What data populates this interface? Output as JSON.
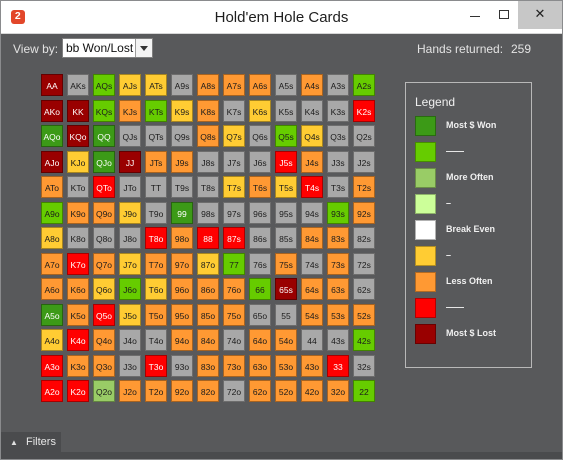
{
  "window": {
    "title": "Hold'em Hole Cards",
    "logo_text": "2",
    "minimize_icon": "minimize-icon",
    "maximize_icon": "maximize-icon",
    "close_icon": "close-icon",
    "close_glyph": "✕"
  },
  "toolbar": {
    "view_by_label": "View by:",
    "view_by_value": "bb Won/Lost",
    "hands_returned_label": "Hands returned:",
    "hands_returned_value": "259"
  },
  "colors": {
    "dg": "#3c9a17",
    "lg": "#66cc00",
    "pg": "#99cc66",
    "vp": "#ccff99",
    "wh": "#ffffff",
    "yl": "#ffcc33",
    "or": "#ff9933",
    "rd": "#ff0000",
    "dr": "#990000",
    "gy": "#a8a8a8"
  },
  "matrix": [
    [
      [
        "AA",
        "dr"
      ],
      [
        "AKs",
        "gy"
      ],
      [
        "AQs",
        "lg"
      ],
      [
        "AJs",
        "yl"
      ],
      [
        "ATs",
        "yl"
      ],
      [
        "A9s",
        "gy"
      ],
      [
        "A8s",
        "or"
      ],
      [
        "A7s",
        "or"
      ],
      [
        "A6s",
        "or"
      ],
      [
        "A5s",
        "gy"
      ],
      [
        "A4s",
        "or"
      ],
      [
        "A3s",
        "gy"
      ],
      [
        "A2s",
        "lg"
      ]
    ],
    [
      [
        "AKo",
        "dr"
      ],
      [
        "KK",
        "dr"
      ],
      [
        "KQs",
        "lg"
      ],
      [
        "KJs",
        "or"
      ],
      [
        "KTs",
        "lg"
      ],
      [
        "K9s",
        "yl"
      ],
      [
        "K8s",
        "or"
      ],
      [
        "K7s",
        "gy"
      ],
      [
        "K6s",
        "yl"
      ],
      [
        "K5s",
        "gy"
      ],
      [
        "K4s",
        "gy"
      ],
      [
        "K3s",
        "gy"
      ],
      [
        "K2s",
        "rd"
      ]
    ],
    [
      [
        "AQo",
        "dg"
      ],
      [
        "KQo",
        "dr"
      ],
      [
        "QQ",
        "dg"
      ],
      [
        "QJs",
        "gy"
      ],
      [
        "QTs",
        "gy"
      ],
      [
        "Q9s",
        "gy"
      ],
      [
        "Q8s",
        "or"
      ],
      [
        "Q7s",
        "yl"
      ],
      [
        "Q6s",
        "gy"
      ],
      [
        "Q5s",
        "lg"
      ],
      [
        "Q4s",
        "yl"
      ],
      [
        "Q3s",
        "gy"
      ],
      [
        "Q2s",
        "gy"
      ]
    ],
    [
      [
        "AJo",
        "dr"
      ],
      [
        "KJo",
        "yl"
      ],
      [
        "QJo",
        "dg"
      ],
      [
        "JJ",
        "dr"
      ],
      [
        "JTs",
        "or"
      ],
      [
        "J9s",
        "or"
      ],
      [
        "J8s",
        "gy"
      ],
      [
        "J7s",
        "gy"
      ],
      [
        "J6s",
        "gy"
      ],
      [
        "J5s",
        "rd"
      ],
      [
        "J4s",
        "or"
      ],
      [
        "J3s",
        "gy"
      ],
      [
        "J2s",
        "gy"
      ]
    ],
    [
      [
        "ATo",
        "or"
      ],
      [
        "KTo",
        "gy"
      ],
      [
        "QTo",
        "rd"
      ],
      [
        "JTo",
        "gy"
      ],
      [
        "TT",
        "gy"
      ],
      [
        "T9s",
        "gy"
      ],
      [
        "T8s",
        "gy"
      ],
      [
        "T7s",
        "yl"
      ],
      [
        "T6s",
        "or"
      ],
      [
        "T5s",
        "yl"
      ],
      [
        "T4s",
        "rd"
      ],
      [
        "T3s",
        "gy"
      ],
      [
        "T2s",
        "or"
      ]
    ],
    [
      [
        "A9o",
        "lg"
      ],
      [
        "K9o",
        "or"
      ],
      [
        "Q9o",
        "or"
      ],
      [
        "J9o",
        "yl"
      ],
      [
        "T9o",
        "gy"
      ],
      [
        "99",
        "dg"
      ],
      [
        "98s",
        "gy"
      ],
      [
        "97s",
        "gy"
      ],
      [
        "96s",
        "gy"
      ],
      [
        "95s",
        "gy"
      ],
      [
        "94s",
        "gy"
      ],
      [
        "93s",
        "lg"
      ],
      [
        "92s",
        "or"
      ]
    ],
    [
      [
        "A8o",
        "yl"
      ],
      [
        "K8o",
        "gy"
      ],
      [
        "Q8o",
        "gy"
      ],
      [
        "J8o",
        "gy"
      ],
      [
        "T8o",
        "rd"
      ],
      [
        "98o",
        "or"
      ],
      [
        "88",
        "rd"
      ],
      [
        "87s",
        "rd"
      ],
      [
        "86s",
        "gy"
      ],
      [
        "85s",
        "gy"
      ],
      [
        "84s",
        "or"
      ],
      [
        "83s",
        "or"
      ],
      [
        "82s",
        "gy"
      ]
    ],
    [
      [
        "A7o",
        "or"
      ],
      [
        "K7o",
        "rd"
      ],
      [
        "Q7o",
        "or"
      ],
      [
        "J7o",
        "yl"
      ],
      [
        "T7o",
        "or"
      ],
      [
        "97o",
        "or"
      ],
      [
        "87o",
        "yl"
      ],
      [
        "77",
        "lg"
      ],
      [
        "76s",
        "gy"
      ],
      [
        "75s",
        "or"
      ],
      [
        "74s",
        "gy"
      ],
      [
        "73s",
        "or"
      ],
      [
        "72s",
        "gy"
      ]
    ],
    [
      [
        "A6o",
        "or"
      ],
      [
        "K6o",
        "or"
      ],
      [
        "Q6o",
        "yl"
      ],
      [
        "J6o",
        "lg"
      ],
      [
        "T6o",
        "yl"
      ],
      [
        "96o",
        "or"
      ],
      [
        "86o",
        "or"
      ],
      [
        "76o",
        "or"
      ],
      [
        "66",
        "lg"
      ],
      [
        "65s",
        "dr"
      ],
      [
        "64s",
        "or"
      ],
      [
        "63s",
        "or"
      ],
      [
        "62s",
        "gy"
      ]
    ],
    [
      [
        "A5o",
        "dg"
      ],
      [
        "K5o",
        "or"
      ],
      [
        "Q5o",
        "rd"
      ],
      [
        "J5o",
        "yl"
      ],
      [
        "T5o",
        "or"
      ],
      [
        "95o",
        "or"
      ],
      [
        "85o",
        "or"
      ],
      [
        "75o",
        "or"
      ],
      [
        "65o",
        "gy"
      ],
      [
        "55",
        "gy"
      ],
      [
        "54s",
        "or"
      ],
      [
        "53s",
        "or"
      ],
      [
        "52s",
        "or"
      ]
    ],
    [
      [
        "A4o",
        "yl"
      ],
      [
        "K4o",
        "rd"
      ],
      [
        "Q4o",
        "or"
      ],
      [
        "J4o",
        "gy"
      ],
      [
        "T4o",
        "gy"
      ],
      [
        "94o",
        "or"
      ],
      [
        "84o",
        "or"
      ],
      [
        "74o",
        "gy"
      ],
      [
        "64o",
        "or"
      ],
      [
        "54o",
        "or"
      ],
      [
        "44",
        "gy"
      ],
      [
        "43s",
        "gy"
      ],
      [
        "42s",
        "lg"
      ]
    ],
    [
      [
        "A3o",
        "rd"
      ],
      [
        "K3o",
        "or"
      ],
      [
        "Q3o",
        "or"
      ],
      [
        "J3o",
        "gy"
      ],
      [
        "T3o",
        "rd"
      ],
      [
        "93o",
        "gy"
      ],
      [
        "83o",
        "or"
      ],
      [
        "73o",
        "or"
      ],
      [
        "63o",
        "or"
      ],
      [
        "53o",
        "or"
      ],
      [
        "43o",
        "or"
      ],
      [
        "33",
        "rd"
      ],
      [
        "32s",
        "gy"
      ]
    ],
    [
      [
        "A2o",
        "rd"
      ],
      [
        "K2o",
        "rd"
      ],
      [
        "Q2o",
        "pg"
      ],
      [
        "J2o",
        "or"
      ],
      [
        "T2o",
        "or"
      ],
      [
        "92o",
        "or"
      ],
      [
        "82o",
        "or"
      ],
      [
        "72o",
        "gy"
      ],
      [
        "62o",
        "or"
      ],
      [
        "52o",
        "or"
      ],
      [
        "42o",
        "or"
      ],
      [
        "32o",
        "or"
      ],
      [
        "22",
        "lg"
      ]
    ]
  ],
  "legend": {
    "title": "Legend",
    "items": [
      {
        "color": "dg",
        "label": "Most $ Won"
      },
      {
        "color": "lg",
        "label": "——"
      },
      {
        "color": "pg",
        "label": "More Often"
      },
      {
        "color": "vp",
        "label": "–"
      },
      {
        "color": "wh",
        "label": "Break Even"
      },
      {
        "color": "yl",
        "label": "–"
      },
      {
        "color": "or",
        "label": "Less Often"
      },
      {
        "color": "rd",
        "label": "——"
      },
      {
        "color": "dr",
        "label": "Most $ Lost"
      }
    ]
  },
  "footer": {
    "filters_label": "Filters",
    "filters_icon": "chevron-up-icon",
    "filters_glyph": "▲"
  }
}
